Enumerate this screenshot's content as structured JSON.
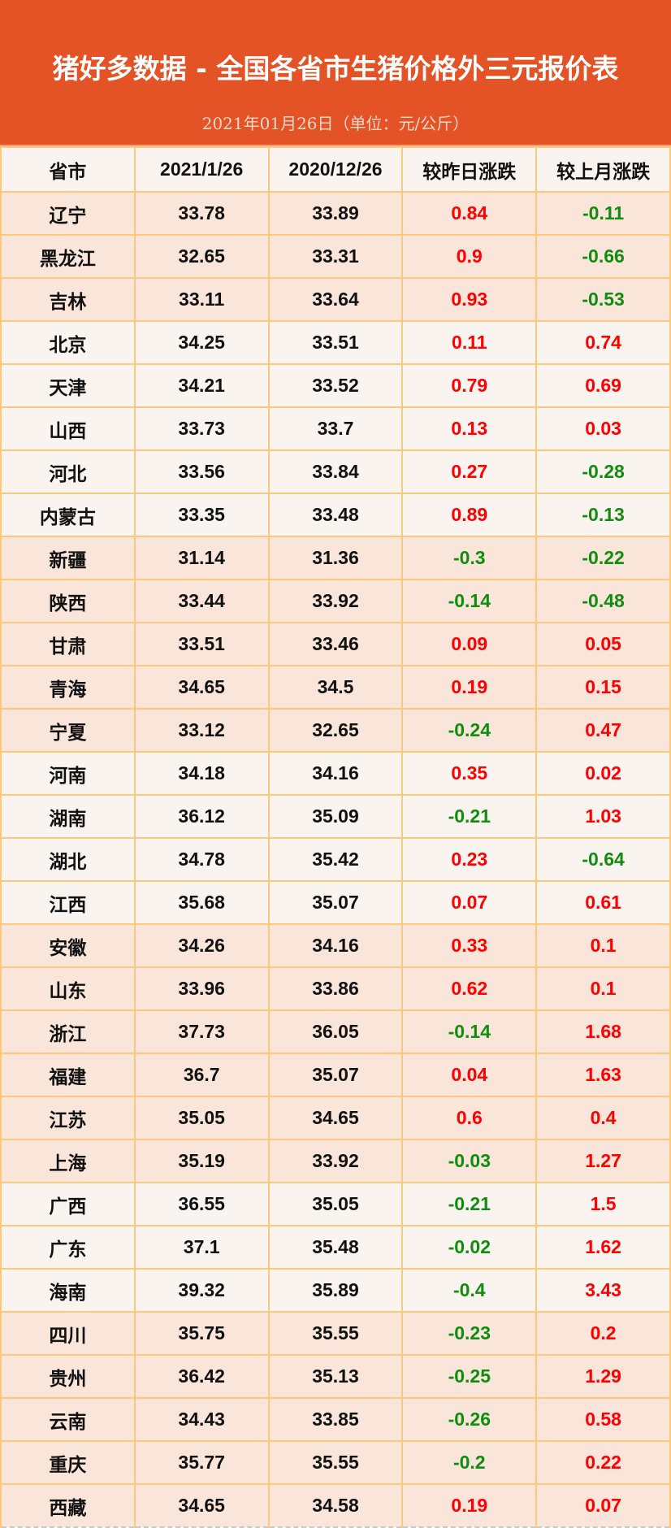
{
  "header": {
    "title": "猪好多数据 - 全国各省市生猪价格外三元报价表",
    "subtitle": "2021年01月26日（单位：元/公斤）"
  },
  "colors": {
    "header_bg": "#e35325",
    "row_peach": "#fae5da",
    "row_light": "#f9f4ef",
    "up": "#ff0000",
    "down": "#118c0f",
    "grid": "#fcc97a"
  },
  "columns": [
    "省市",
    "2021/1/26",
    "2020/12/26",
    "较昨日涨跌",
    "较上月涨跌"
  ],
  "rows": [
    [
      "辽宁",
      "33.78",
      "33.89",
      "0.84",
      "-0.11",
      "peach"
    ],
    [
      "黑龙江",
      "32.65",
      "33.31",
      "0.9",
      "-0.66",
      "peach"
    ],
    [
      "吉林",
      "33.11",
      "33.64",
      "0.93",
      "-0.53",
      "peach"
    ],
    [
      "北京",
      "34.25",
      "33.51",
      "0.11",
      "0.74",
      "light"
    ],
    [
      "天津",
      "34.21",
      "33.52",
      "0.79",
      "0.69",
      "light"
    ],
    [
      "山西",
      "33.73",
      "33.7",
      "0.13",
      "0.03",
      "light"
    ],
    [
      "河北",
      "33.56",
      "33.84",
      "0.27",
      "-0.28",
      "light"
    ],
    [
      "内蒙古",
      "33.35",
      "33.48",
      "0.89",
      "-0.13",
      "light"
    ],
    [
      "新疆",
      "31.14",
      "31.36",
      "-0.3",
      "-0.22",
      "peach"
    ],
    [
      "陕西",
      "33.44",
      "33.92",
      "-0.14",
      "-0.48",
      "peach"
    ],
    [
      "甘肃",
      "33.51",
      "33.46",
      "0.09",
      "0.05",
      "peach"
    ],
    [
      "青海",
      "34.65",
      "34.5",
      "0.19",
      "0.15",
      "peach"
    ],
    [
      "宁夏",
      "33.12",
      "32.65",
      "-0.24",
      "0.47",
      "peach"
    ],
    [
      "河南",
      "34.18",
      "34.16",
      "0.35",
      "0.02",
      "light"
    ],
    [
      "湖南",
      "36.12",
      "35.09",
      "-0.21",
      "1.03",
      "light"
    ],
    [
      "湖北",
      "34.78",
      "35.42",
      "0.23",
      "-0.64",
      "light"
    ],
    [
      "江西",
      "35.68",
      "35.07",
      "0.07",
      "0.61",
      "light"
    ],
    [
      "安徽",
      "34.26",
      "34.16",
      "0.33",
      "0.1",
      "peach"
    ],
    [
      "山东",
      "33.96",
      "33.86",
      "0.62",
      "0.1",
      "peach"
    ],
    [
      "浙江",
      "37.73",
      "36.05",
      "-0.14",
      "1.68",
      "peach"
    ],
    [
      "福建",
      "36.7",
      "35.07",
      "0.04",
      "1.63",
      "peach"
    ],
    [
      "江苏",
      "35.05",
      "34.65",
      "0.6",
      "0.4",
      "peach"
    ],
    [
      "上海",
      "35.19",
      "33.92",
      "-0.03",
      "1.27",
      "peach"
    ],
    [
      "广西",
      "36.55",
      "35.05",
      "-0.21",
      "1.5",
      "light"
    ],
    [
      "广东",
      "37.1",
      "35.48",
      "-0.02",
      "1.62",
      "light"
    ],
    [
      "海南",
      "39.32",
      "35.89",
      "-0.4",
      "3.43",
      "light"
    ],
    [
      "四川",
      "35.75",
      "35.55",
      "-0.23",
      "0.2",
      "peach"
    ],
    [
      "贵州",
      "36.42",
      "35.13",
      "-0.25",
      "1.29",
      "peach"
    ],
    [
      "云南",
      "34.43",
      "33.85",
      "-0.26",
      "0.58",
      "peach"
    ],
    [
      "重庆",
      "35.77",
      "35.55",
      "-0.2",
      "0.22",
      "peach"
    ],
    [
      "西藏",
      "34.65",
      "34.58",
      "0.19",
      "0.07",
      "peach"
    ]
  ]
}
